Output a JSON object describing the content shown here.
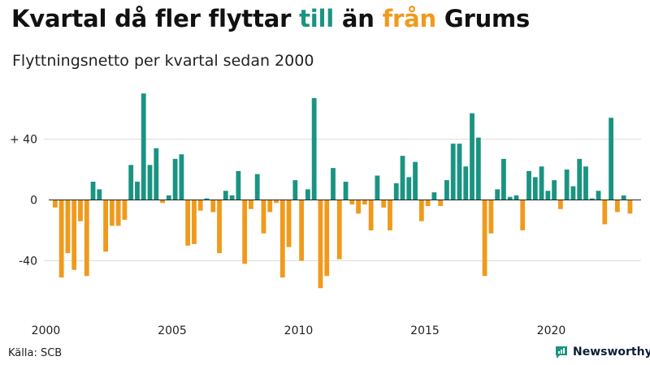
{
  "header": {
    "title_parts": [
      "Kvartal då fler flyttar ",
      "till",
      " än ",
      "från",
      " Grums"
    ],
    "subtitle": "Flyttningsnetto per kvartal sedan 2000"
  },
  "footer": {
    "source": "Källa: SCB",
    "brand": "Newsworthy"
  },
  "colors": {
    "positive": "#1a9482",
    "negative": "#f09a1c",
    "title": "#111111",
    "axis_text": "#222222"
  },
  "chart_data": {
    "type": "bar",
    "title": "Kvartal då fler flyttar till än från Grums",
    "subtitle": "Flyttningsnetto per kvartal sedan 2000",
    "xlabel": "",
    "ylabel": "",
    "x_start": 2000,
    "y_ticks": [
      40,
      0,
      -40
    ],
    "y_tick_labels": [
      "+ 40",
      "0",
      "-40"
    ],
    "x_ticks": [
      2000,
      2005,
      2010,
      2015,
      2020
    ],
    "x_tick_labels": [
      "2000",
      "2005",
      "2010",
      "2015",
      "2020"
    ],
    "ylim": [
      -60,
      75
    ],
    "grid": true,
    "values": [
      -5,
      -51,
      -35,
      -46,
      -14,
      -50,
      12,
      7,
      -34,
      -17,
      -17,
      -13,
      23,
      12,
      70,
      23,
      34,
      -2,
      3,
      27,
      30,
      -30,
      -29,
      -7,
      1,
      -8,
      -35,
      6,
      3,
      19,
      -42,
      -6,
      17,
      -22,
      -8,
      -2,
      -51,
      -31,
      13,
      -40,
      7,
      67,
      -58,
      -50,
      21,
      -39,
      12,
      -3,
      -9,
      -3,
      -20,
      16,
      -5,
      -20,
      11,
      29,
      15,
      25,
      -14,
      -4,
      5,
      -4,
      13,
      37,
      37,
      22,
      57,
      41,
      -50,
      -22,
      7,
      27,
      2,
      3,
      -20,
      19,
      15,
      22,
      6,
      13,
      -6,
      20,
      9,
      27,
      22,
      1,
      6,
      -16,
      54,
      -8,
      3,
      -9
    ]
  }
}
